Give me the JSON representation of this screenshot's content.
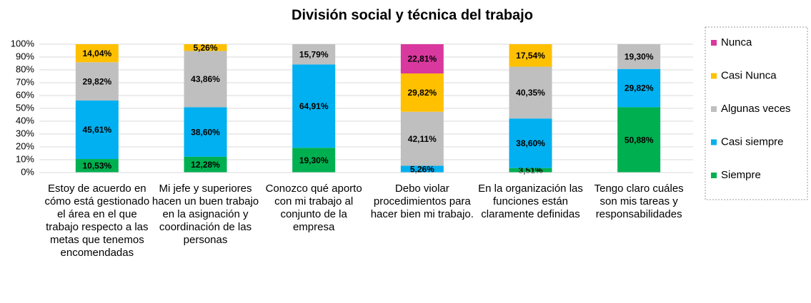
{
  "chart_data": {
    "type": "stacked_bar",
    "title": "División social y técnica del trabajo",
    "categories": [
      "Estoy de acuerdo en cómo está gestionado el área en el que trabajo respecto a las metas que tenemos encomendadas",
      "Mi jefe y superiores hacen un buen trabajo en la asignación y coordinación de las personas",
      "Conozco qué aporto con mi trabajo al conjunto de la empresa",
      "Debo violar procedimientos para hacer bien mi trabajo.",
      "En la organización las funciones están claramente definidas",
      "Tengo claro cuáles son mis tareas y responsabilidades"
    ],
    "series": [
      {
        "name": "Siempre",
        "color": "#00b050",
        "values": [
          10.53,
          12.28,
          19.3,
          null,
          3.51,
          50.88
        ],
        "value_labels": [
          "10,53%",
          "12,28%",
          "19,30%",
          null,
          "3,51%",
          "50,88%"
        ]
      },
      {
        "name": "Casi siempre",
        "color": "#00b0f0",
        "values": [
          45.61,
          38.6,
          64.91,
          5.26,
          38.6,
          29.82
        ],
        "value_labels": [
          "45,61%",
          "38,60%",
          "64,91%",
          "5,26%",
          "38,60%",
          "29,82%"
        ]
      },
      {
        "name": "Algunas veces",
        "color": "#bfbfbf",
        "values": [
          29.82,
          43.86,
          15.79,
          42.11,
          40.35,
          19.3
        ],
        "value_labels": [
          "29,82%",
          "43,86%",
          "15,79%",
          "42,11%",
          "40,35%",
          "19,30%"
        ]
      },
      {
        "name": "Casi Nunca",
        "color": "#ffc000",
        "values": [
          14.04,
          5.26,
          null,
          29.82,
          17.54,
          null
        ],
        "value_labels": [
          "14,04%",
          "5,26%",
          null,
          "29,82%",
          "17,54%",
          null
        ]
      },
      {
        "name": "Nunca",
        "color": "#d9399e",
        "values": [
          null,
          null,
          null,
          22.81,
          null,
          null
        ],
        "value_labels": [
          null,
          null,
          null,
          "22,81%",
          null,
          null
        ]
      }
    ],
    "ylim": [
      0,
      100
    ],
    "yticks": [
      {
        "value": 0,
        "label": "0%"
      },
      {
        "value": 10,
        "label": "10%"
      },
      {
        "value": 20,
        "label": "20%"
      },
      {
        "value": 30,
        "label": "30%"
      },
      {
        "value": 40,
        "label": "40%"
      },
      {
        "value": 50,
        "label": "50%"
      },
      {
        "value": 60,
        "label": "60%"
      },
      {
        "value": 70,
        "label": "70%"
      },
      {
        "value": 80,
        "label": "80%"
      },
      {
        "value": 90,
        "label": "90%"
      },
      {
        "value": 100,
        "label": "100%"
      }
    ],
    "grid": true,
    "legend": "right"
  }
}
